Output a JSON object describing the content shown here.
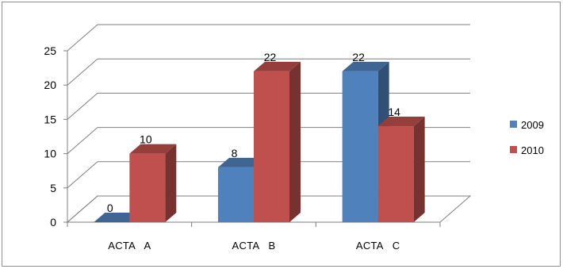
{
  "chart_data": {
    "type": "bar",
    "style": "3d-clustered-column",
    "categories": [
      "ACTA   A",
      "ACTA   B",
      "ACTA   C"
    ],
    "series": [
      {
        "name": "2009",
        "values": [
          0,
          8,
          22
        ],
        "color": "#4F81BD"
      },
      {
        "name": "2010",
        "values": [
          10,
          22,
          14
        ],
        "color": "#C0504D"
      }
    ],
    "yticks": [
      0,
      5,
      10,
      15,
      20,
      25
    ],
    "ylim": [
      0,
      25
    ],
    "grid": true,
    "legend_position": "right",
    "data_labels": true
  }
}
